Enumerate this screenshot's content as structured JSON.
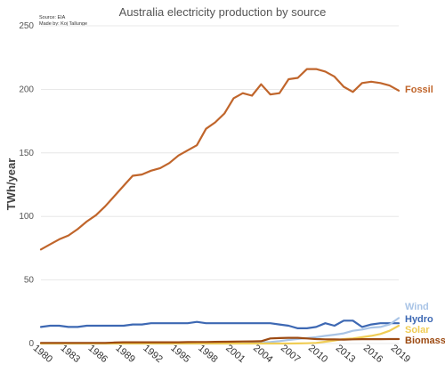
{
  "chart_data": {
    "type": "line",
    "title": "Australia electricity production by source",
    "source_lines": [
      "Source: EIA",
      "Made by: Koj Tallunge"
    ],
    "xlabel": "",
    "ylabel": "TWh/year",
    "xlim": [
      1980,
      2019
    ],
    "ylim": [
      0,
      250
    ],
    "yticks": [
      0,
      50,
      100,
      150,
      200,
      250
    ],
    "xticks": [
      1980,
      1983,
      1986,
      1989,
      1992,
      1995,
      1998,
      2001,
      2004,
      2007,
      2010,
      2013,
      2016,
      2019
    ],
    "grid": true,
    "legend": "inline labels at right end of lines",
    "x": [
      1980,
      1981,
      1982,
      1983,
      1984,
      1985,
      1986,
      1987,
      1988,
      1989,
      1990,
      1991,
      1992,
      1993,
      1994,
      1995,
      1996,
      1997,
      1998,
      1999,
      2000,
      2001,
      2002,
      2003,
      2004,
      2005,
      2006,
      2007,
      2008,
      2009,
      2010,
      2011,
      2012,
      2013,
      2014,
      2015,
      2016,
      2017,
      2018,
      2019
    ],
    "series": [
      {
        "name": "Fossil",
        "color": "#c0652b",
        "values": [
          74,
          78,
          82,
          85,
          90,
          96,
          101,
          108,
          116,
          124,
          132,
          133,
          136,
          138,
          142,
          148,
          152,
          156,
          169,
          174,
          181,
          193,
          197,
          195,
          204,
          196,
          197,
          208,
          209,
          216,
          216,
          214,
          210,
          202,
          198,
          205,
          206,
          205,
          203,
          199
        ]
      },
      {
        "name": "Hydro",
        "color": "#3d68b3",
        "values": [
          13,
          14,
          14,
          13,
          13,
          14,
          14,
          14,
          14,
          14,
          15,
          15,
          16,
          16,
          16,
          16,
          16,
          17,
          16,
          16,
          16,
          16,
          16,
          16,
          16,
          16,
          15,
          14,
          12,
          12,
          13,
          16,
          14,
          18,
          18,
          13,
          15,
          16,
          16,
          16
        ]
      },
      {
        "name": "Wind",
        "color": "#a9c4e6",
        "values": [
          0,
          0,
          0,
          0,
          0,
          0,
          0,
          0,
          0,
          0,
          0,
          0,
          0,
          0,
          0,
          0,
          0,
          0,
          0,
          0,
          0,
          0,
          0.4,
          0.6,
          0.9,
          1.2,
          1.9,
          2.8,
          3.6,
          4.3,
          5.0,
          6.0,
          6.9,
          8.0,
          10.0,
          11.0,
          12.5,
          13.0,
          15.0,
          20.0
        ]
      },
      {
        "name": "Solar",
        "color": "#f0cd55",
        "values": [
          0,
          0,
          0,
          0,
          0,
          0,
          0,
          0,
          0,
          0,
          0,
          0,
          0,
          0,
          0,
          0,
          0,
          0,
          0,
          0,
          0,
          0,
          0,
          0,
          0,
          0,
          0,
          0,
          0.1,
          0.2,
          0.5,
          1.4,
          2.4,
          3.5,
          4.0,
          5.0,
          6.0,
          7.5,
          10.0,
          14.0
        ]
      },
      {
        "name": "Biomass",
        "color": "#9c4a12",
        "values": [
          0.5,
          0.5,
          0.5,
          0.5,
          0.5,
          0.5,
          0.5,
          0.5,
          0.8,
          1.0,
          1.0,
          1.0,
          1.0,
          1.0,
          1.0,
          1.0,
          1.1,
          1.2,
          1.2,
          1.3,
          1.4,
          1.5,
          1.6,
          1.7,
          1.8,
          4.0,
          4.3,
          4.5,
          4.5,
          4.0,
          3.5,
          3.3,
          3.2,
          3.1,
          3.3,
          3.4,
          3.4,
          3.4,
          3.5,
          3.5
        ]
      }
    ]
  }
}
